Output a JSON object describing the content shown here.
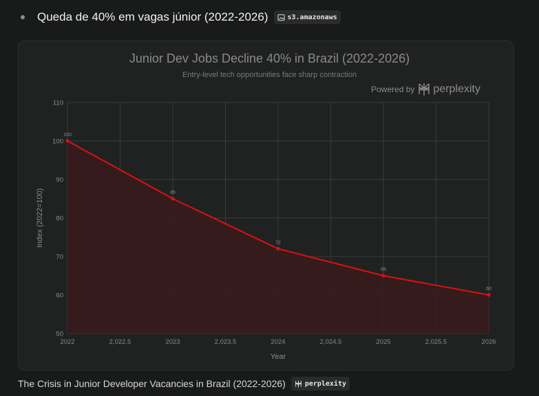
{
  "bullet": {
    "text": "Queda de 40% em vagas júnior (2022-2026)",
    "source_chip": "s3.amazonaws",
    "chip_icon": "image-icon"
  },
  "powered": {
    "label": "Powered by",
    "brand": "perplexity",
    "logo_icon": "perplexity-logo-icon"
  },
  "caption": {
    "text": "The Crisis in Junior Developer Vacancies in Brazil (2022-2026)",
    "chip": "perplexity",
    "chip_icon": "perplexity-logo-icon"
  },
  "chart_data": {
    "type": "area",
    "title": "Junior Dev Jobs Decline 40% in Brazil (2022-2026)",
    "subtitle": "Entry-level tech opportunities face sharp contraction",
    "xlabel": "Year",
    "ylabel": "Index (2022=100)",
    "x": [
      2022,
      2023,
      2024,
      2025,
      2026
    ],
    "series": [
      {
        "values": [
          100,
          85,
          72,
          65,
          60
        ],
        "color": "#e01010"
      }
    ],
    "data_labels": [
      "100",
      "85",
      "72",
      "65",
      "60"
    ],
    "xlim": [
      2022,
      2026
    ],
    "ylim": [
      50,
      110
    ],
    "x_ticks": [
      2022,
      2022.5,
      2023,
      2023.5,
      2024,
      2024.5,
      2025,
      2025.5,
      2026
    ],
    "x_tick_labels": [
      "2022",
      "2,022.5",
      "2023",
      "2,023.5",
      "2024",
      "2,024.5",
      "2025",
      "2,025.5",
      "2026"
    ],
    "y_ticks": [
      50,
      60,
      70,
      80,
      90,
      100,
      110
    ],
    "y_tick_labels": [
      "50",
      "60",
      "70",
      "80",
      "90",
      "100",
      "110"
    ],
    "grid": true,
    "fill_color": "#3a1a1b"
  }
}
